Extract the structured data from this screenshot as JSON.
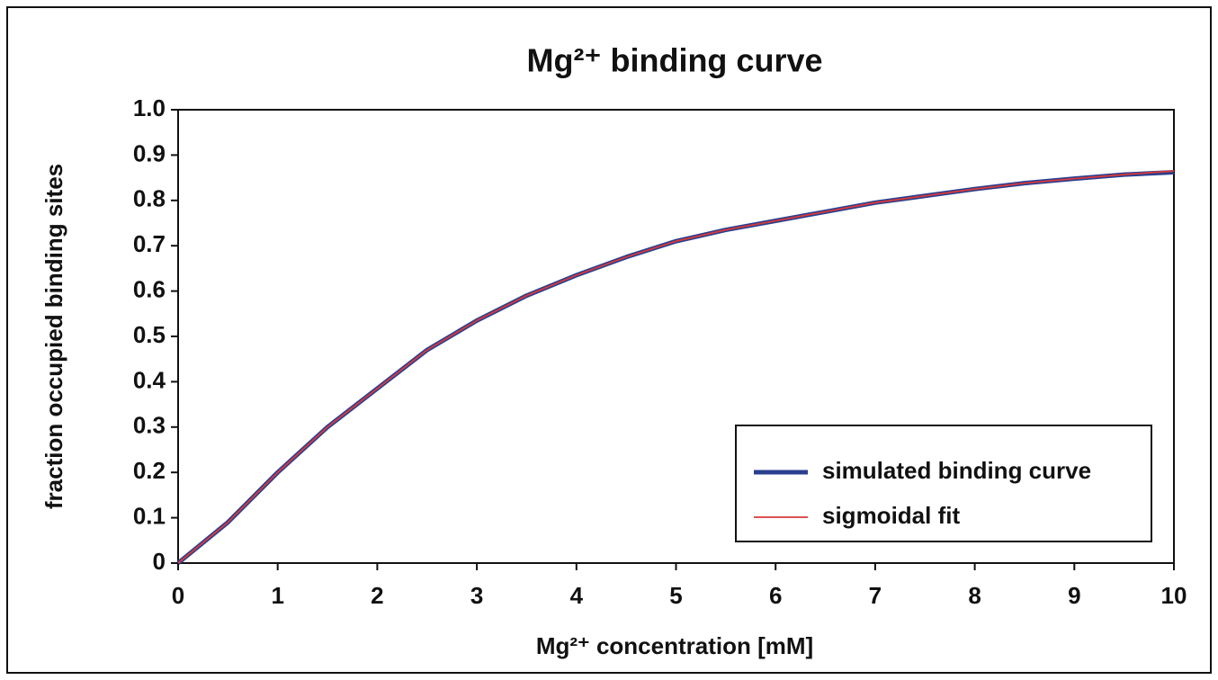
{
  "chart_data": {
    "type": "line",
    "title": "Mg²⁺ binding curve",
    "x_label": "Mg²⁺ concentration [mM]",
    "y_label": "fraction occupied binding sites",
    "x": [
      0,
      0.5,
      1,
      1.5,
      2,
      2.5,
      3,
      3.5,
      4,
      4.5,
      5,
      5.5,
      6,
      6.5,
      7,
      7.5,
      8,
      8.5,
      9,
      9.5,
      10
    ],
    "series": [
      {
        "name": "simulated binding curve",
        "color": "#2a3f8f",
        "values": [
          0,
          0.09,
          0.2,
          0.3,
          0.385,
          0.47,
          0.535,
          0.59,
          0.635,
          0.675,
          0.71,
          0.735,
          0.755,
          0.775,
          0.795,
          0.81,
          0.825,
          0.838,
          0.848,
          0.857,
          0.862
        ]
      },
      {
        "name": "sigmoidal fit",
        "color": "#d83a3a",
        "values": [
          0,
          0.09,
          0.2,
          0.3,
          0.385,
          0.47,
          0.535,
          0.59,
          0.635,
          0.675,
          0.71,
          0.735,
          0.755,
          0.775,
          0.795,
          0.81,
          0.825,
          0.838,
          0.848,
          0.857,
          0.865
        ]
      }
    ],
    "xlim": [
      0,
      10
    ],
    "xticks": [
      0,
      1,
      2,
      3,
      4,
      5,
      6,
      7,
      8,
      9,
      10
    ],
    "ylim": [
      0,
      1
    ],
    "yticks": [
      0,
      0.1,
      0.2,
      0.3,
      0.4,
      0.5,
      0.6,
      0.7,
      0.8,
      0.9,
      {
        "value": 1,
        "label": "1.0"
      }
    ],
    "grid": false,
    "legend": "lower-right"
  }
}
